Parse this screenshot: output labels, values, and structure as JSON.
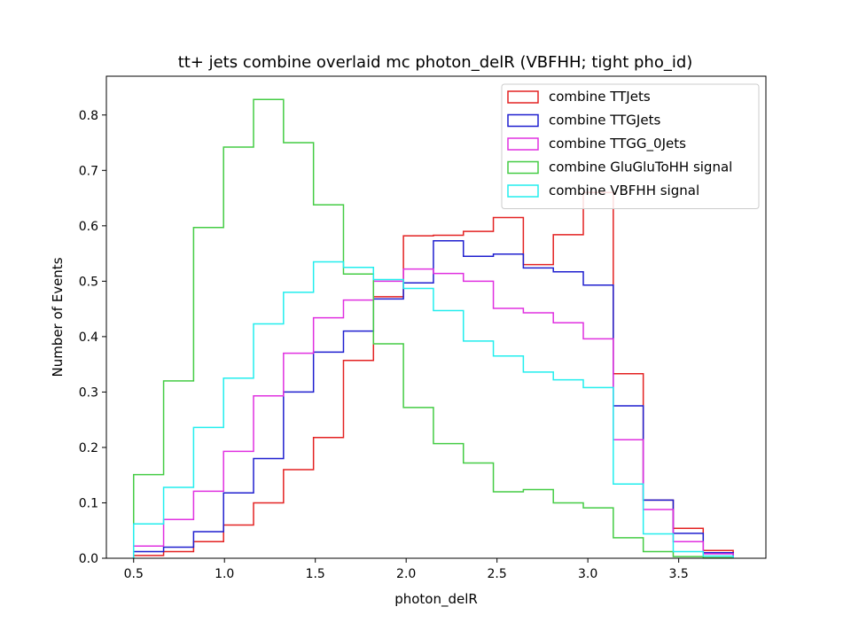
{
  "chart_data": {
    "type": "histogram-step",
    "title": "tt+ jets combine overlaid mc photon_delR (VBFHH; tight pho_id)",
    "xlabel": "photon_delR",
    "ylabel": "Number of Events",
    "xlim": [
      0.35,
      3.98
    ],
    "ylim": [
      0.0,
      0.87
    ],
    "xticks": [
      0.5,
      1.0,
      1.5,
      2.0,
      2.5,
      3.0,
      3.5
    ],
    "yticks": [
      0.0,
      0.1,
      0.2,
      0.3,
      0.4,
      0.5,
      0.6,
      0.7,
      0.8
    ],
    "xtick_labels": [
      "0.5",
      "1.0",
      "1.5",
      "2.0",
      "2.5",
      "3.0",
      "3.5"
    ],
    "ytick_labels": [
      "0.0",
      "0.1",
      "0.2",
      "0.3",
      "0.4",
      "0.5",
      "0.6",
      "0.7",
      "0.8"
    ],
    "bin_edges": [
      0.5,
      0.665,
      0.83,
      0.995,
      1.16,
      1.325,
      1.49,
      1.655,
      1.82,
      1.985,
      2.15,
      2.315,
      2.48,
      2.645,
      2.81,
      2.975,
      3.14,
      3.305,
      3.47,
      3.635,
      3.8
    ],
    "legend_position": "upper right",
    "series": [
      {
        "name": "combine TTJets",
        "color": "#e32222",
        "values": [
          0.005,
          0.012,
          0.03,
          0.06,
          0.1,
          0.16,
          0.218,
          0.357,
          0.472,
          0.582,
          0.583,
          0.59,
          0.615,
          0.53,
          0.584,
          0.66,
          0.333,
          0.105,
          0.054,
          0.014
        ]
      },
      {
        "name": "combine TTGJets",
        "color": "#1f1fcf",
        "values": [
          0.012,
          0.02,
          0.048,
          0.118,
          0.18,
          0.3,
          0.372,
          0.41,
          0.468,
          0.497,
          0.573,
          0.545,
          0.549,
          0.524,
          0.517,
          0.493,
          0.275,
          0.105,
          0.045,
          0.01
        ]
      },
      {
        "name": "combine TTGG_0Jets",
        "color": "#e030e0",
        "values": [
          0.022,
          0.07,
          0.121,
          0.193,
          0.293,
          0.37,
          0.434,
          0.466,
          0.5,
          0.522,
          0.514,
          0.5,
          0.451,
          0.443,
          0.425,
          0.396,
          0.214,
          0.088,
          0.03,
          0.008
        ]
      },
      {
        "name": "combine GluGluToHH signal",
        "color": "#44cc44",
        "values": [
          0.151,
          0.32,
          0.597,
          0.742,
          0.828,
          0.75,
          0.638,
          0.513,
          0.387,
          0.272,
          0.207,
          0.172,
          0.12,
          0.124,
          0.1,
          0.091,
          0.037,
          0.012,
          0.003,
          0.001
        ]
      },
      {
        "name": "combine VBFHH signal",
        "color": "#22eeee",
        "values": [
          0.062,
          0.128,
          0.236,
          0.325,
          0.423,
          0.48,
          0.535,
          0.525,
          0.503,
          0.487,
          0.447,
          0.392,
          0.365,
          0.336,
          0.322,
          0.308,
          0.134,
          0.044,
          0.012,
          0.004
        ]
      }
    ]
  }
}
